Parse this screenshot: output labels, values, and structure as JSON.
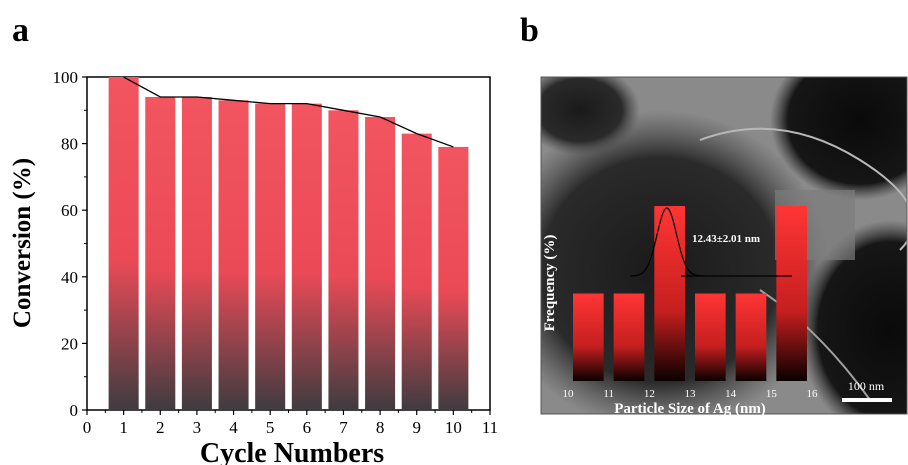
{
  "panels": {
    "a": "a",
    "b": "b"
  },
  "chart_data": [
    {
      "type": "bar",
      "panel": "a",
      "title": "",
      "xlabel": "Cycle Numbers",
      "ylabel": "Conversion (%)",
      "categories": [
        1,
        2,
        3,
        4,
        5,
        6,
        7,
        8,
        9,
        10
      ],
      "values": [
        100,
        94,
        94,
        93,
        92,
        92,
        90,
        88,
        83,
        79
      ],
      "xlim": [
        0,
        11
      ],
      "ylim": [
        0,
        100
      ],
      "xticks": [
        0,
        1,
        2,
        3,
        4,
        5,
        6,
        7,
        8,
        9,
        10,
        11
      ],
      "yticks": [
        0,
        20,
        40,
        60,
        80,
        100
      ],
      "trend_line": true,
      "grid": false,
      "bar_gradient": [
        "#f25560",
        "#3e3c40"
      ]
    },
    {
      "type": "bar",
      "panel": "b-inset",
      "title": "",
      "xlabel": "Particle Size of Ag (nm)",
      "ylabel": "Frequency (%)",
      "categories": [
        "10",
        "11",
        "12",
        "13",
        "14",
        "15",
        "16"
      ],
      "bin_edges": [
        10,
        11,
        12,
        13,
        14,
        15,
        16
      ],
      "bins": [
        {
          "from": 10,
          "to": 11,
          "value": 1
        },
        {
          "from": 11,
          "to": 12,
          "value": 1
        },
        {
          "from": 12,
          "to": 13,
          "value": 2
        },
        {
          "from": 13,
          "to": 14,
          "value": 1
        },
        {
          "from": 14,
          "to": 15,
          "value": 1
        },
        {
          "from": 15,
          "to": 16,
          "value": 2
        }
      ],
      "annotation": "12.43±2.01 nm",
      "fit_mean": 12.43,
      "fit_sd": 2.01,
      "scale_bar": "100 nm",
      "bar_gradient": [
        "#ff3b3b",
        "#000000"
      ]
    }
  ]
}
